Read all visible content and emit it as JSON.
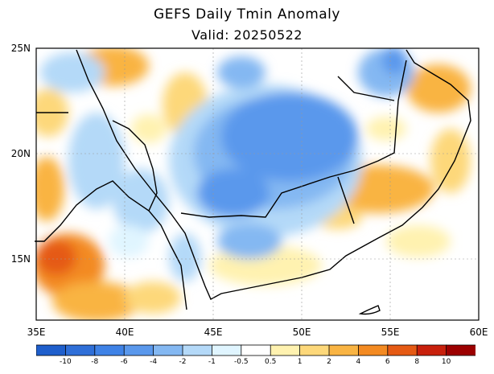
{
  "title": "GEFS Daily Tmin Anomaly",
  "subtitle": "Valid: 20250522",
  "lat_labels": [
    "25N",
    "20N",
    "15N"
  ],
  "lon_labels": [
    "35E",
    "40E",
    "45E",
    "50E",
    "55E",
    "60E"
  ],
  "colorbar": {
    "labels": [
      "-10",
      "-8",
      "-6",
      "-4",
      "-2",
      "-1",
      "-0.5",
      "0.5",
      "1",
      "2",
      "4",
      "6",
      "8",
      "10"
    ],
    "colors": [
      "#1f5fcc",
      "#2f6fd8",
      "#3f82e6",
      "#5a98ec",
      "#84b8f2",
      "#b4d9f8",
      "#e0f5ff",
      "#ffffff",
      "#fff2b0",
      "#fdd87a",
      "#f9b443",
      "#f38a22",
      "#e55a14",
      "#c8200c",
      "#9c0000"
    ]
  },
  "region": {
    "lon_range": [
      35,
      60
    ],
    "lat_range": [
      12,
      25
    ]
  }
}
